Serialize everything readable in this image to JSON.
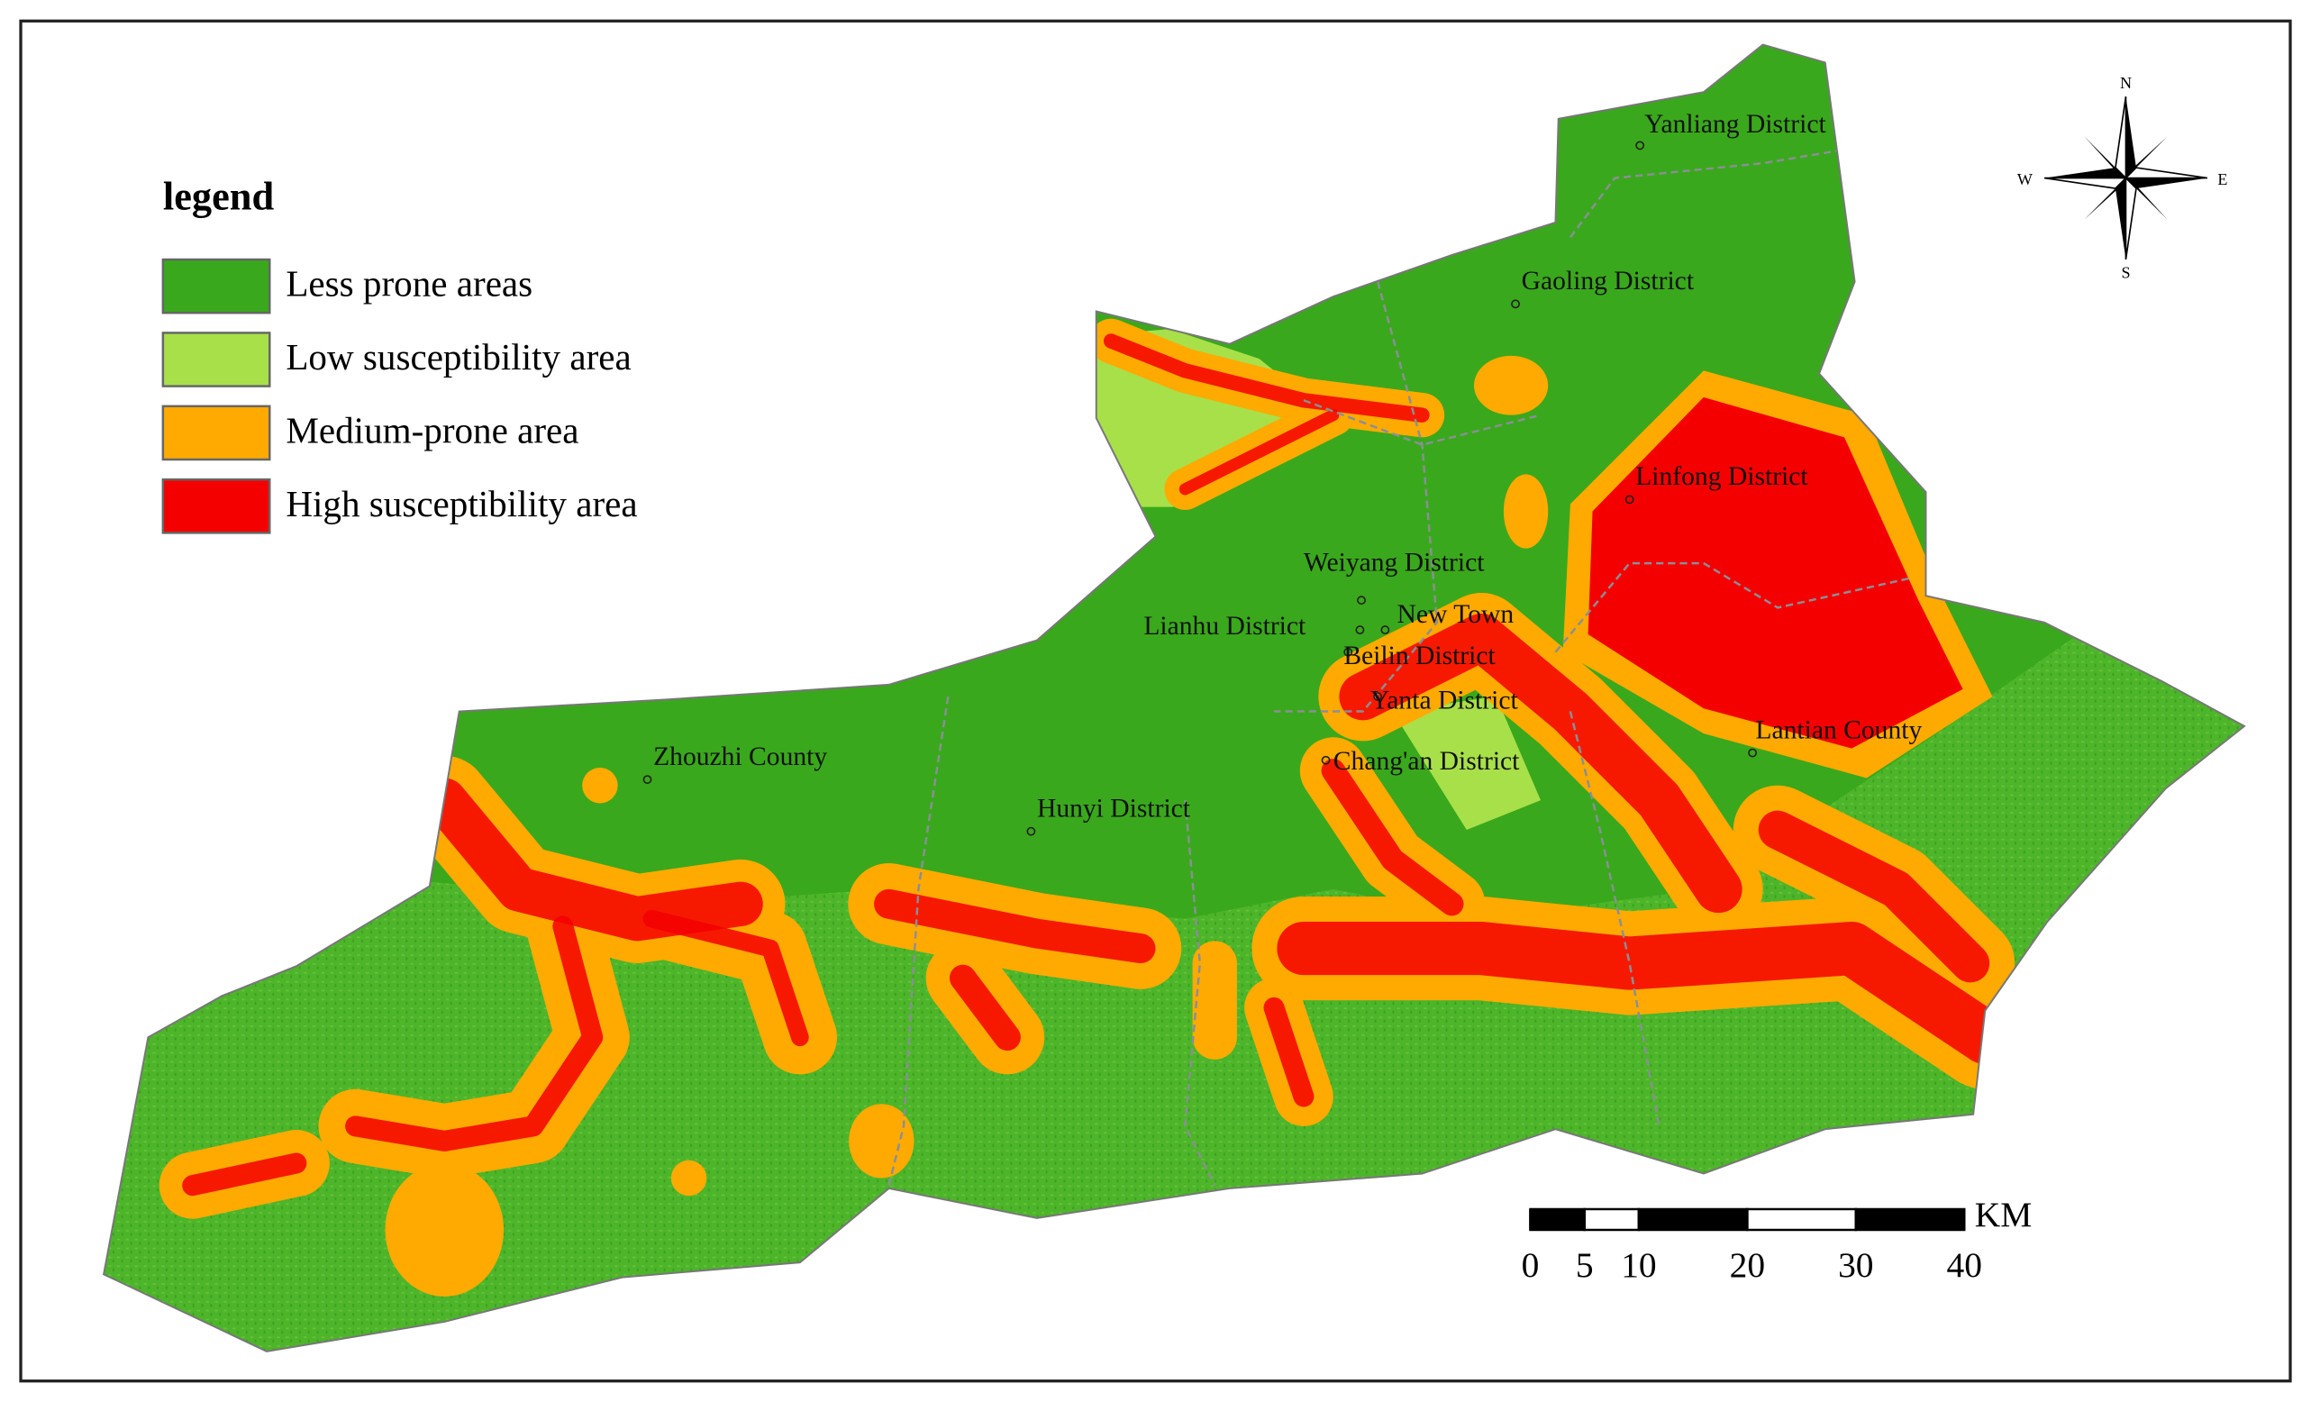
{
  "legend": {
    "title": "legend",
    "items": [
      {
        "label": "Less prone areas",
        "color": "#3aa81c"
      },
      {
        "label": "Low susceptibility area",
        "color": "#a8e04a"
      },
      {
        "label": "Medium-prone area",
        "color": "#ffaa00"
      },
      {
        "label": "High susceptibility area",
        "color": "#f50000"
      }
    ]
  },
  "places": [
    "Yanliang District",
    "Gaoling District",
    "Linfong District",
    "Weiyang District",
    "New Town",
    "Lianhu District",
    "Beilin District",
    "Yanta District",
    "Chang'an District",
    "Lantian County",
    "Zhouzhi County",
    "Hunyi District"
  ],
  "compass": {
    "north": "N",
    "south": "S",
    "east": "E",
    "west": "W"
  },
  "scale_bar": {
    "unit": "KM",
    "ticks": [
      0,
      5,
      10,
      20,
      30,
      40
    ]
  }
}
